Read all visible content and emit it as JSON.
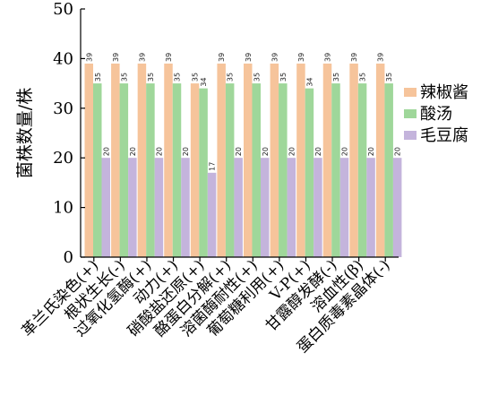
{
  "chart_data": {
    "type": "bar",
    "ylabel": "菌株数量/株",
    "ylim": [
      0,
      50
    ],
    "yticks": [
      0,
      10,
      20,
      30,
      40,
      50
    ],
    "legend_position": "right",
    "categories": [
      "革兰氏染色(+)",
      "根状生长(-)",
      "过氧化氢酶(+)",
      "动力(+)",
      "硝酸盐还原(+)",
      "酪蛋白分解(+)",
      "溶菌酶耐性(+)",
      "葡萄糖利用(+)",
      "V-P(+)",
      "甘露醇发酵(-)",
      "溶血性(β)",
      "蛋白质毒素晶体(-)"
    ],
    "series": [
      {
        "name": "辣椒酱",
        "color": "#f6c49b",
        "values": [
          39,
          39,
          39,
          39,
          35,
          39,
          39,
          39,
          39,
          39,
          39,
          39
        ]
      },
      {
        "name": "酸汤",
        "color": "#9fd79a",
        "values": [
          35,
          35,
          35,
          35,
          34,
          35,
          35,
          35,
          34,
          35,
          35,
          35
        ]
      },
      {
        "name": "毛豆腐",
        "color": "#c4b4dc",
        "values": [
          20,
          20,
          20,
          20,
          17,
          20,
          20,
          20,
          20,
          20,
          20,
          20
        ]
      }
    ]
  }
}
